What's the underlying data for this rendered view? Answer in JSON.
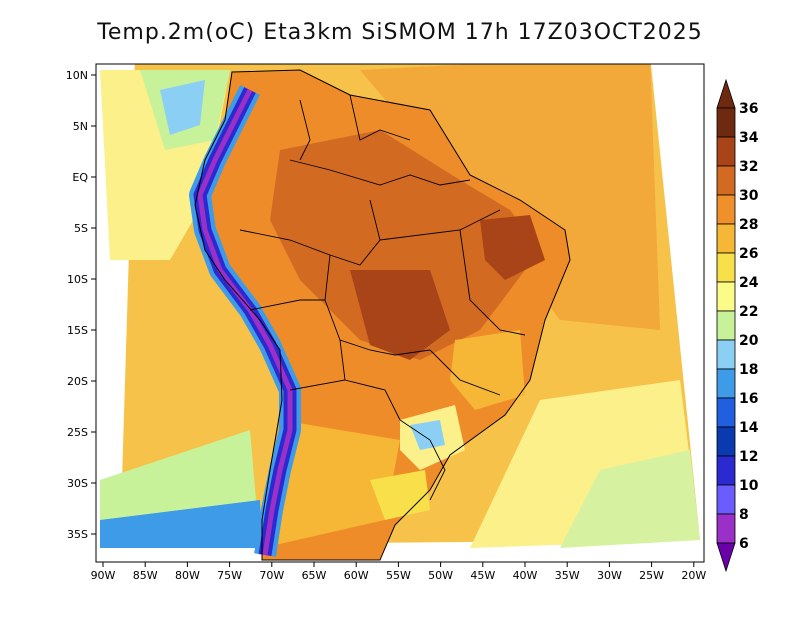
{
  "title": "Temp.2m(oC) Eta3km SiSMOM 17h 17Z03OCT2025",
  "colorbar": {
    "labels": [
      "6",
      "8",
      "10",
      "12",
      "14",
      "16",
      "18",
      "20",
      "22",
      "24",
      "26",
      "28",
      "30",
      "32",
      "34",
      "36"
    ],
    "colors": [
      "#6a00a8",
      "#9b30c8",
      "#6a5cff",
      "#2a2ad0",
      "#0a3ab0",
      "#2060e0",
      "#3e9be8",
      "#8ccff5",
      "#c8f29a",
      "#fbfb88",
      "#f8e04a",
      "#f6b636",
      "#f0902a",
      "#d26a22",
      "#a84418",
      "#6e2a10"
    ]
  },
  "axes": {
    "x_ticks": [
      "90W",
      "85W",
      "80W",
      "75W",
      "70W",
      "65W",
      "60W",
      "55W",
      "50W",
      "45W",
      "40W",
      "35W",
      "30W",
      "25W",
      "20W"
    ],
    "y_ticks": [
      "10N",
      "5N",
      "EQ",
      "5S",
      "10S",
      "15S",
      "20S",
      "25S",
      "30S",
      "35S"
    ]
  }
}
